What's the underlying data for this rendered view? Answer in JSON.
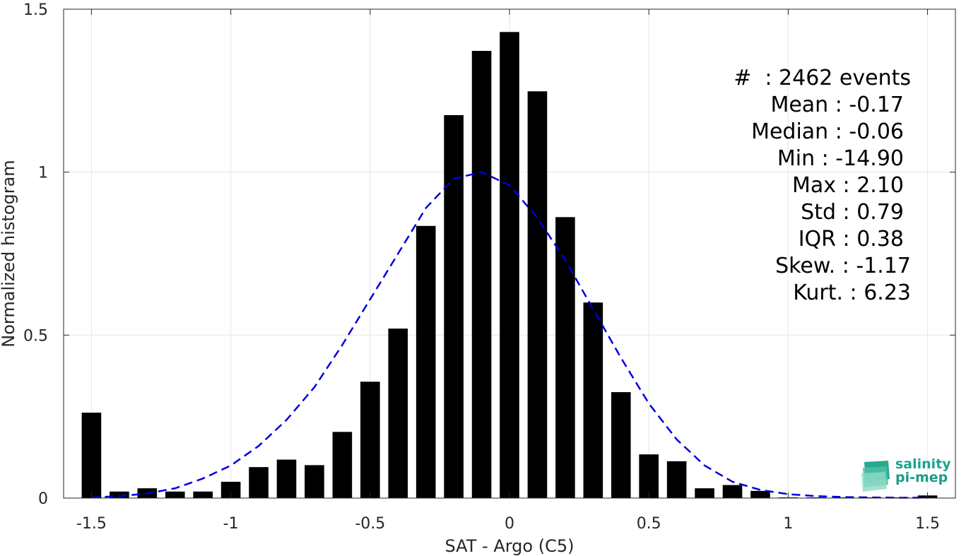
{
  "chart_data": {
    "type": "bar",
    "xlabel": "SAT - Argo (C5)",
    "ylabel": "Normalized histogram",
    "xlim": [
      -1.6,
      1.6
    ],
    "ylim": [
      0,
      1.5
    ],
    "xticks": [
      -1.5,
      -1,
      -0.5,
      0,
      0.5,
      1,
      1.5
    ],
    "xtick_labels": [
      "-1.5",
      "-1",
      "-0.5",
      "0",
      "0.5",
      "1",
      "1.5"
    ],
    "yticks": [
      0,
      0.5,
      1,
      1.5
    ],
    "ytick_labels": [
      "0",
      "0.5",
      "1",
      "1.5"
    ],
    "grid": true,
    "bar_color": "#000000",
    "fit_color": "#0000dd",
    "bar_width": 0.07,
    "x": [
      -1.5,
      -1.4,
      -1.3,
      -1.2,
      -1.1,
      -1.0,
      -0.9,
      -0.8,
      -0.7,
      -0.6,
      -0.5,
      -0.4,
      -0.3,
      -0.2,
      -0.1,
      0.0,
      0.1,
      0.2,
      0.3,
      0.4,
      0.5,
      0.6,
      0.7,
      0.8,
      0.9,
      1.0,
      1.1,
      1.2,
      1.3,
      1.4,
      1.5
    ],
    "values": [
      0.262,
      0.02,
      0.03,
      0.02,
      0.02,
      0.05,
      0.095,
      0.118,
      0.101,
      0.203,
      0.357,
      0.52,
      0.835,
      1.175,
      1.372,
      1.43,
      1.248,
      0.862,
      0.6,
      0.325,
      0.134,
      0.113,
      0.03,
      0.04,
      0.022,
      0.002,
      0.002,
      0.002,
      0.002,
      0.002,
      0.008
    ],
    "fit_curve": {
      "style": "dashed",
      "x": [
        -1.5,
        -1.4,
        -1.3,
        -1.2,
        -1.1,
        -1.0,
        -0.9,
        -0.8,
        -0.7,
        -0.6,
        -0.5,
        -0.4,
        -0.3,
        -0.2,
        -0.1,
        0.0,
        0.1,
        0.2,
        0.3,
        0.4,
        0.5,
        0.6,
        0.7,
        0.8,
        0.9,
        1.0,
        1.1,
        1.2,
        1.3,
        1.4,
        1.5
      ],
      "y": [
        0.002,
        0.006,
        0.014,
        0.03,
        0.06,
        0.1,
        0.16,
        0.24,
        0.34,
        0.47,
        0.61,
        0.75,
        0.89,
        0.98,
        1.0,
        0.96,
        0.86,
        0.73,
        0.58,
        0.43,
        0.29,
        0.18,
        0.1,
        0.05,
        0.025,
        0.012,
        0.006,
        0.003,
        0.002,
        0.001,
        0.001
      ]
    },
    "stats": [
      "#  : 2462 events",
      "Mean : -0.17",
      "Median : -0.06",
      "Min : -14.90",
      "Max : 2.10",
      "Std : 0.79",
      "IQR : 0.38",
      "Skew. : -1.17",
      "Kurt. : 6.23"
    ]
  },
  "logo": {
    "line1": "salinity",
    "line2": "pi-mep"
  }
}
